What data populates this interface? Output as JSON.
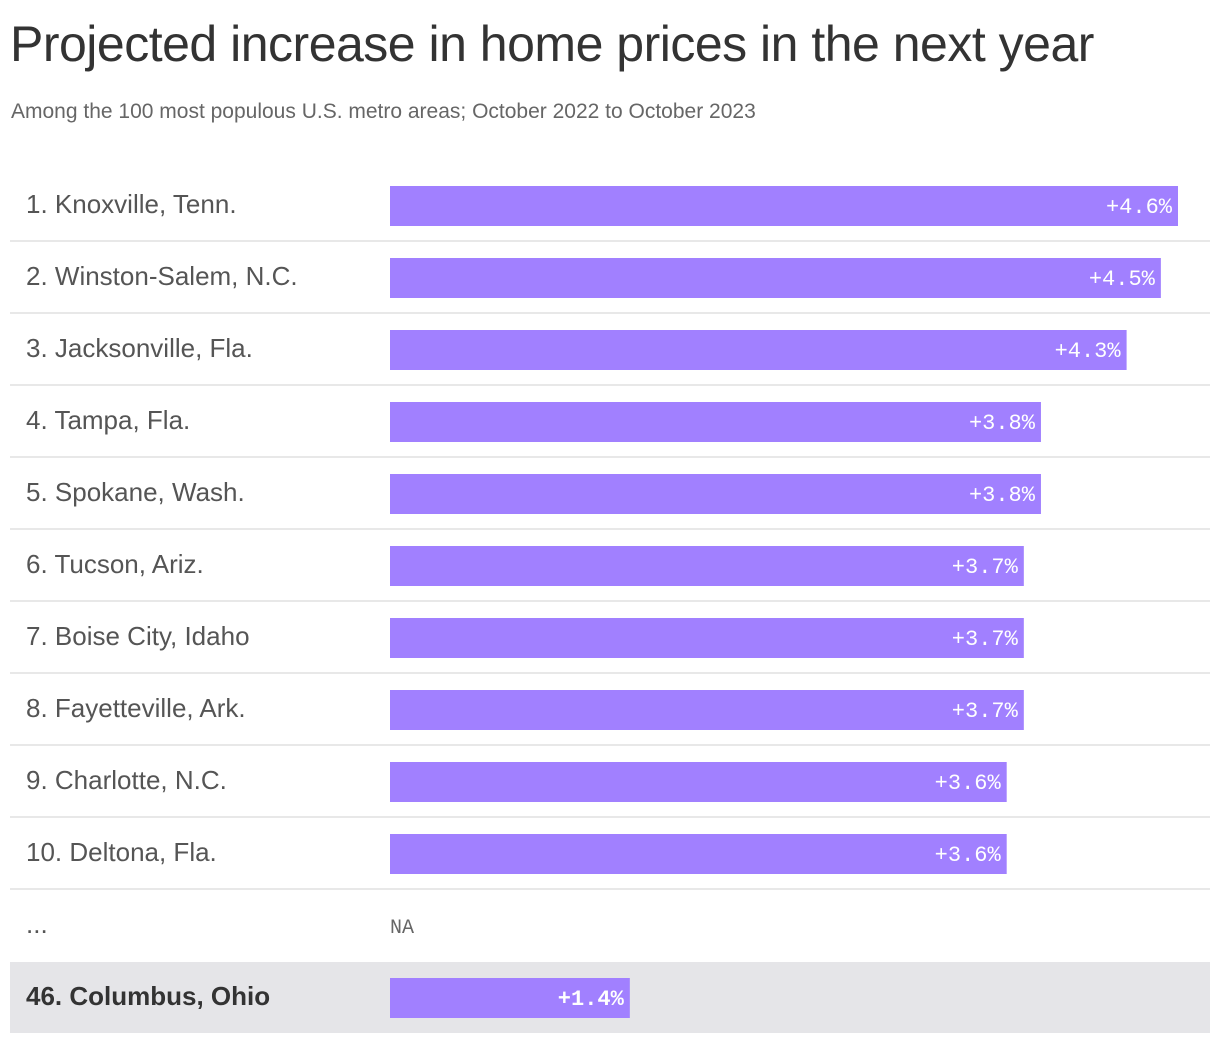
{
  "title": "Projected increase in home prices in the next year",
  "subtitle": "Among the 100 most populous U.S. metro areas; October 2022 to October 2023",
  "colors": {
    "bar": "#a180ff",
    "divider": "#e0e0e0",
    "highlight_bg": "#e5e5e8"
  },
  "chart_data": {
    "type": "bar",
    "orientation": "horizontal",
    "xlim": [
      0,
      4.6
    ],
    "rows": [
      {
        "category": "1. Knoxville, Tenn.",
        "value": 4.6,
        "label": "+4.6%"
      },
      {
        "category": "2. Winston-Salem, N.C.",
        "value": 4.5,
        "label": "+4.5%"
      },
      {
        "category": "3. Jacksonville, Fla.",
        "value": 4.3,
        "label": "+4.3%"
      },
      {
        "category": "4. Tampa, Fla.",
        "value": 3.8,
        "label": "+3.8%"
      },
      {
        "category": "5. Spokane, Wash.",
        "value": 3.8,
        "label": "+3.8%"
      },
      {
        "category": "6. Tucson, Ariz.",
        "value": 3.7,
        "label": "+3.7%"
      },
      {
        "category": "7. Boise City, Idaho",
        "value": 3.7,
        "label": "+3.7%"
      },
      {
        "category": "8. Fayetteville, Ark.",
        "value": 3.7,
        "label": "+3.7%"
      },
      {
        "category": "9. Charlotte, N.C.",
        "value": 3.6,
        "label": "+3.6%"
      },
      {
        "category": "10. Deltona, Fla.",
        "value": 3.6,
        "label": "+3.6%"
      },
      {
        "category": "...",
        "value": null,
        "label": "NA"
      },
      {
        "category": "46. Columbus, Ohio",
        "value": 1.4,
        "label": "+1.4%",
        "highlight": true
      }
    ]
  }
}
